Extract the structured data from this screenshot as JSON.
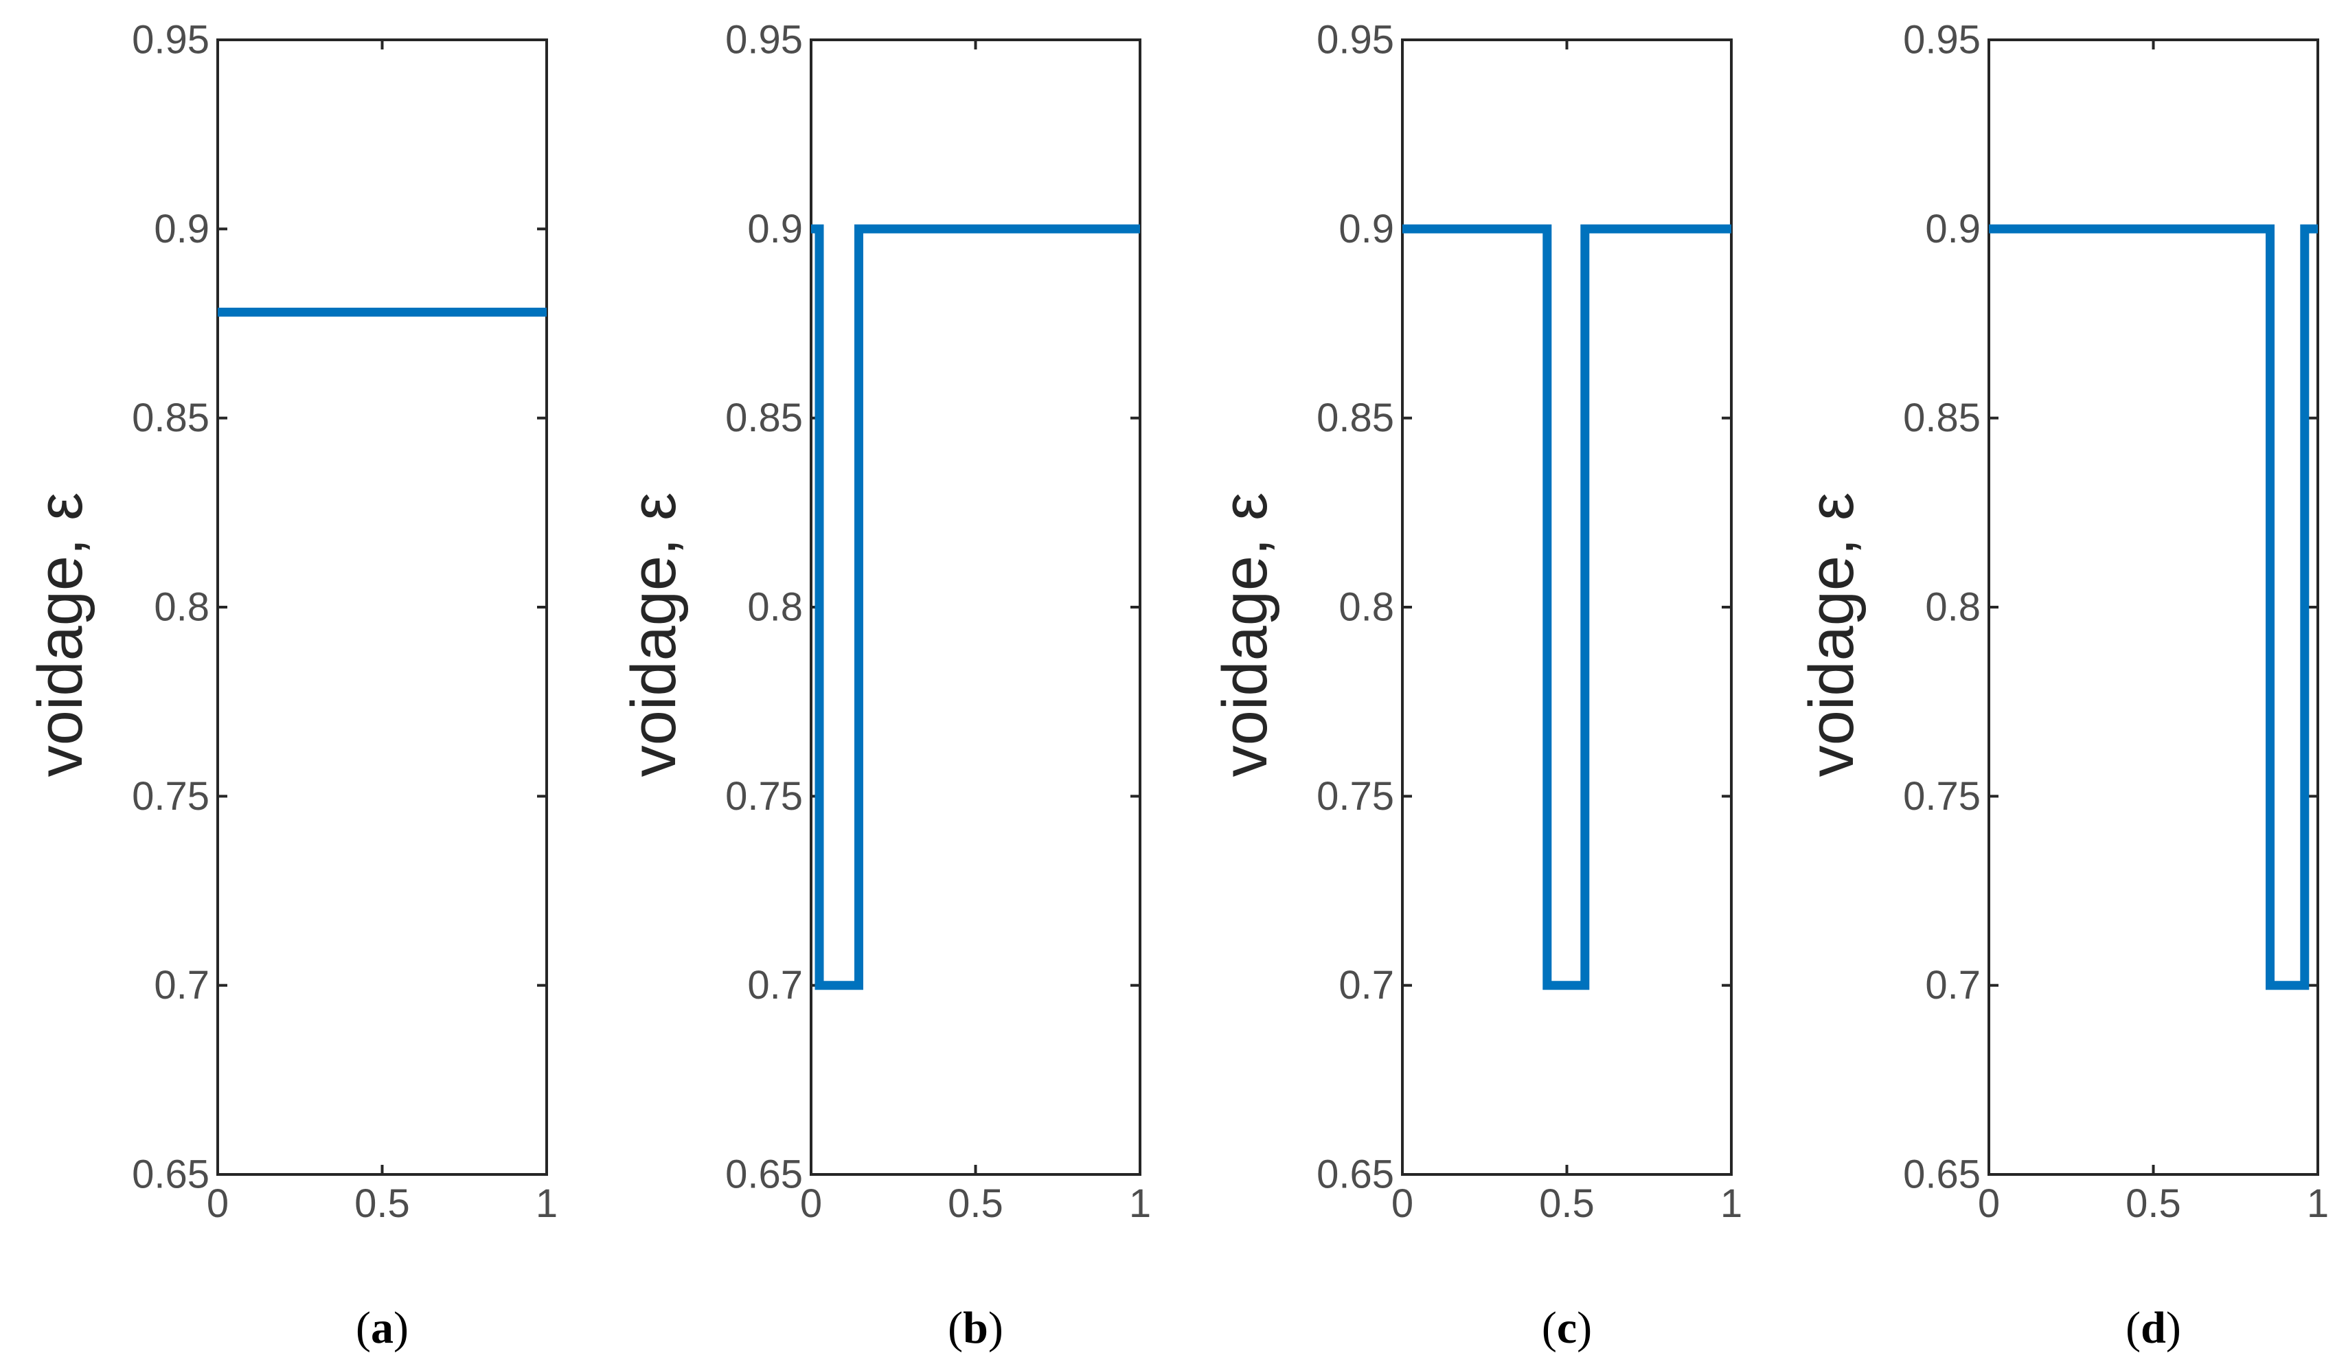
{
  "chart_data": [
    {
      "type": "line",
      "panel_label": "a",
      "xlabel": "",
      "ylabel": "voidage, ε",
      "xlim": [
        0,
        1
      ],
      "ylim": [
        0.65,
        0.95
      ],
      "x_ticks": [
        "0",
        "0.5",
        "1"
      ],
      "y_ticks": [
        "0.65",
        "0.7",
        "0.75",
        "0.8",
        "0.85",
        "0.9",
        "0.95"
      ],
      "grid": false,
      "series": [
        {
          "name": "voidage",
          "color": "#0072bd",
          "x": [
            0,
            1
          ],
          "y": [
            0.878,
            0.878
          ]
        }
      ]
    },
    {
      "type": "line",
      "panel_label": "b",
      "xlabel": "",
      "ylabel": "voidage, ε",
      "xlim": [
        0,
        1
      ],
      "ylim": [
        0.65,
        0.95
      ],
      "x_ticks": [
        "0",
        "0.5",
        "1"
      ],
      "y_ticks": [
        "0.65",
        "0.7",
        "0.75",
        "0.8",
        "0.85",
        "0.9",
        "0.95"
      ],
      "grid": false,
      "series": [
        {
          "name": "voidage",
          "color": "#0072bd",
          "x": [
            0,
            0.025,
            0.025,
            0.145,
            0.145,
            1
          ],
          "y": [
            0.9,
            0.9,
            0.7,
            0.7,
            0.9,
            0.9
          ]
        }
      ]
    },
    {
      "type": "line",
      "panel_label": "c",
      "xlabel": "",
      "ylabel": "voidage, ε",
      "xlim": [
        0,
        1
      ],
      "ylim": [
        0.65,
        0.95
      ],
      "x_ticks": [
        "0",
        "0.5",
        "1"
      ],
      "y_ticks": [
        "0.65",
        "0.7",
        "0.75",
        "0.8",
        "0.85",
        "0.9",
        "0.95"
      ],
      "grid": false,
      "series": [
        {
          "name": "voidage",
          "color": "#0072bd",
          "x": [
            0,
            0.44,
            0.44,
            0.555,
            0.555,
            1
          ],
          "y": [
            0.9,
            0.9,
            0.7,
            0.7,
            0.9,
            0.9
          ]
        }
      ]
    },
    {
      "type": "line",
      "panel_label": "d",
      "xlabel": "",
      "ylabel": "voidage, ε",
      "xlim": [
        0,
        1
      ],
      "ylim": [
        0.65,
        0.95
      ],
      "x_ticks": [
        "0",
        "0.5",
        "1"
      ],
      "y_ticks": [
        "0.65",
        "0.7",
        "0.75",
        "0.8",
        "0.85",
        "0.9",
        "0.95"
      ],
      "grid": false,
      "series": [
        {
          "name": "voidage",
          "color": "#0072bd",
          "x": [
            0,
            0.855,
            0.855,
            0.96,
            0.96,
            1
          ],
          "y": [
            0.9,
            0.9,
            0.7,
            0.7,
            0.9,
            0.9
          ]
        }
      ]
    }
  ]
}
